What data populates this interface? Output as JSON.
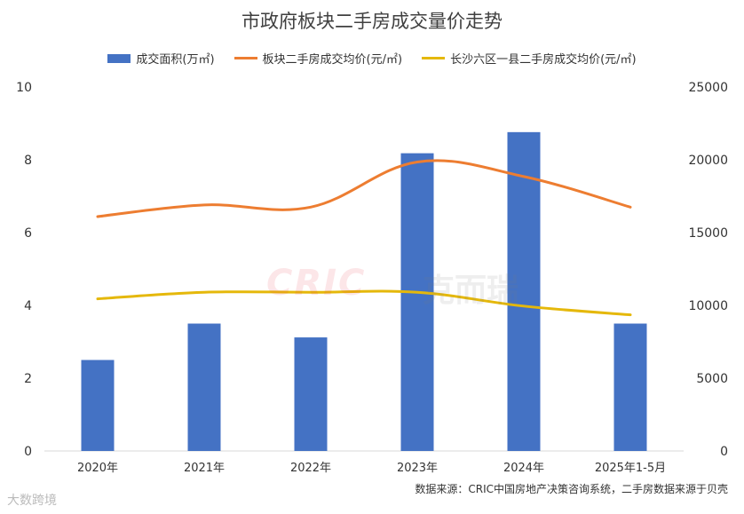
{
  "chart_data": {
    "type": "bar",
    "title": "市政府板块二手房成交量价走势",
    "categories": [
      "2020年",
      "2021年",
      "2022年",
      "2023年",
      "2024年",
      "2025年1-5月"
    ],
    "series": [
      {
        "name": "成交面积(万㎡)",
        "type": "bar",
        "axis": "left",
        "color": "#4472C4",
        "values": [
          2.5,
          3.5,
          3.12,
          8.18,
          8.76,
          3.5
        ]
      },
      {
        "name": "板块二手房成交均价(元/㎡)",
        "type": "line",
        "axis": "right",
        "color": "#ED7D31",
        "values": [
          16100,
          16900,
          16750,
          19850,
          18850,
          16750
        ]
      },
      {
        "name": "长沙六区一县二手房成交均价(元/㎡)",
        "type": "line",
        "axis": "right",
        "color": "#E5B80B",
        "values": [
          10450,
          10900,
          10900,
          10900,
          9950,
          9350
        ]
      }
    ],
    "left_axis": {
      "ylim": [
        0,
        10
      ],
      "ticks": [
        "0",
        "2",
        "4",
        "6",
        "8",
        "10"
      ]
    },
    "right_axis": {
      "ylim": [
        0,
        25000
      ],
      "ticks": [
        "0",
        "5000",
        "10000",
        "15000",
        "20000",
        "25000"
      ]
    },
    "grid": false,
    "legend_position": "top"
  },
  "watermark": {
    "logo_text": "CRIC",
    "logo_cn": "克而瑞"
  },
  "source_note": "数据来源：CRIC中国房地产决策咨询系统，二手房数据来源于贝壳",
  "brand": "大数跨境"
}
